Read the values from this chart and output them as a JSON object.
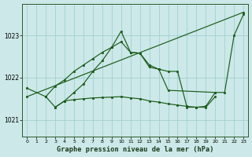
{
  "title": "Graphe pression niveau de la mer (hPa)",
  "bg_color": "#cce8e8",
  "grid_color": "#99cccc",
  "line_color": "#1a5c1a",
  "x_ticks": [
    0,
    1,
    2,
    3,
    4,
    5,
    6,
    7,
    8,
    9,
    10,
    11,
    12,
    13,
    14,
    15,
    16,
    17,
    18,
    19,
    20,
    21,
    22,
    23
  ],
  "ylim": [
    1020.6,
    1023.75
  ],
  "yticks": [
    1021,
    1022,
    1023
  ],
  "figsize": [
    3.2,
    2.0
  ],
  "dpi": 100,
  "series": [
    {
      "x": [
        0,
        2,
        3,
        4,
        5,
        6,
        7,
        8,
        9,
        10,
        11,
        12,
        13,
        14,
        15,
        20
      ],
      "y": [
        1021.75,
        1021.55,
        1021.8,
        1021.95,
        1022.15,
        1022.3,
        1022.45,
        1022.6,
        1022.72,
        1022.85,
        1022.6,
        1022.58,
        1022.25,
        1022.2,
        1021.7,
        1021.65
      ]
    },
    {
      "x": [
        2,
        3,
        4,
        5,
        6,
        7,
        8,
        9,
        10,
        11,
        12,
        13,
        14,
        15,
        16,
        17,
        18,
        19,
        20
      ],
      "y": [
        1021.55,
        1021.3,
        1021.45,
        1021.48,
        1021.5,
        1021.52,
        1021.53,
        1021.54,
        1021.55,
        1021.52,
        1021.5,
        1021.45,
        1021.42,
        1021.38,
        1021.35,
        1021.32,
        1021.3,
        1021.3,
        1021.55
      ]
    },
    {
      "x": [
        0,
        23
      ],
      "y": [
        1021.55,
        1023.55
      ]
    },
    {
      "comment": "Line4: starts x=3 ~1021.3, up to x=10 ~1023.1, down to x=17 ~1021.3, up to x=22 ~1023.0, x=23 ~1023.5",
      "x": [
        3,
        4,
        5,
        6,
        7,
        8,
        9,
        10,
        11,
        12,
        13,
        14,
        15,
        16,
        17,
        18,
        19,
        20,
        21,
        22,
        23
      ],
      "y": [
        1021.3,
        1021.45,
        1021.65,
        1021.85,
        1022.15,
        1022.4,
        1022.72,
        1023.1,
        1022.6,
        1022.58,
        1022.3,
        1022.2,
        1022.15,
        1022.15,
        1021.3,
        1021.3,
        1021.32,
        1021.65,
        1021.65,
        1023.0,
        1023.5
      ]
    }
  ]
}
